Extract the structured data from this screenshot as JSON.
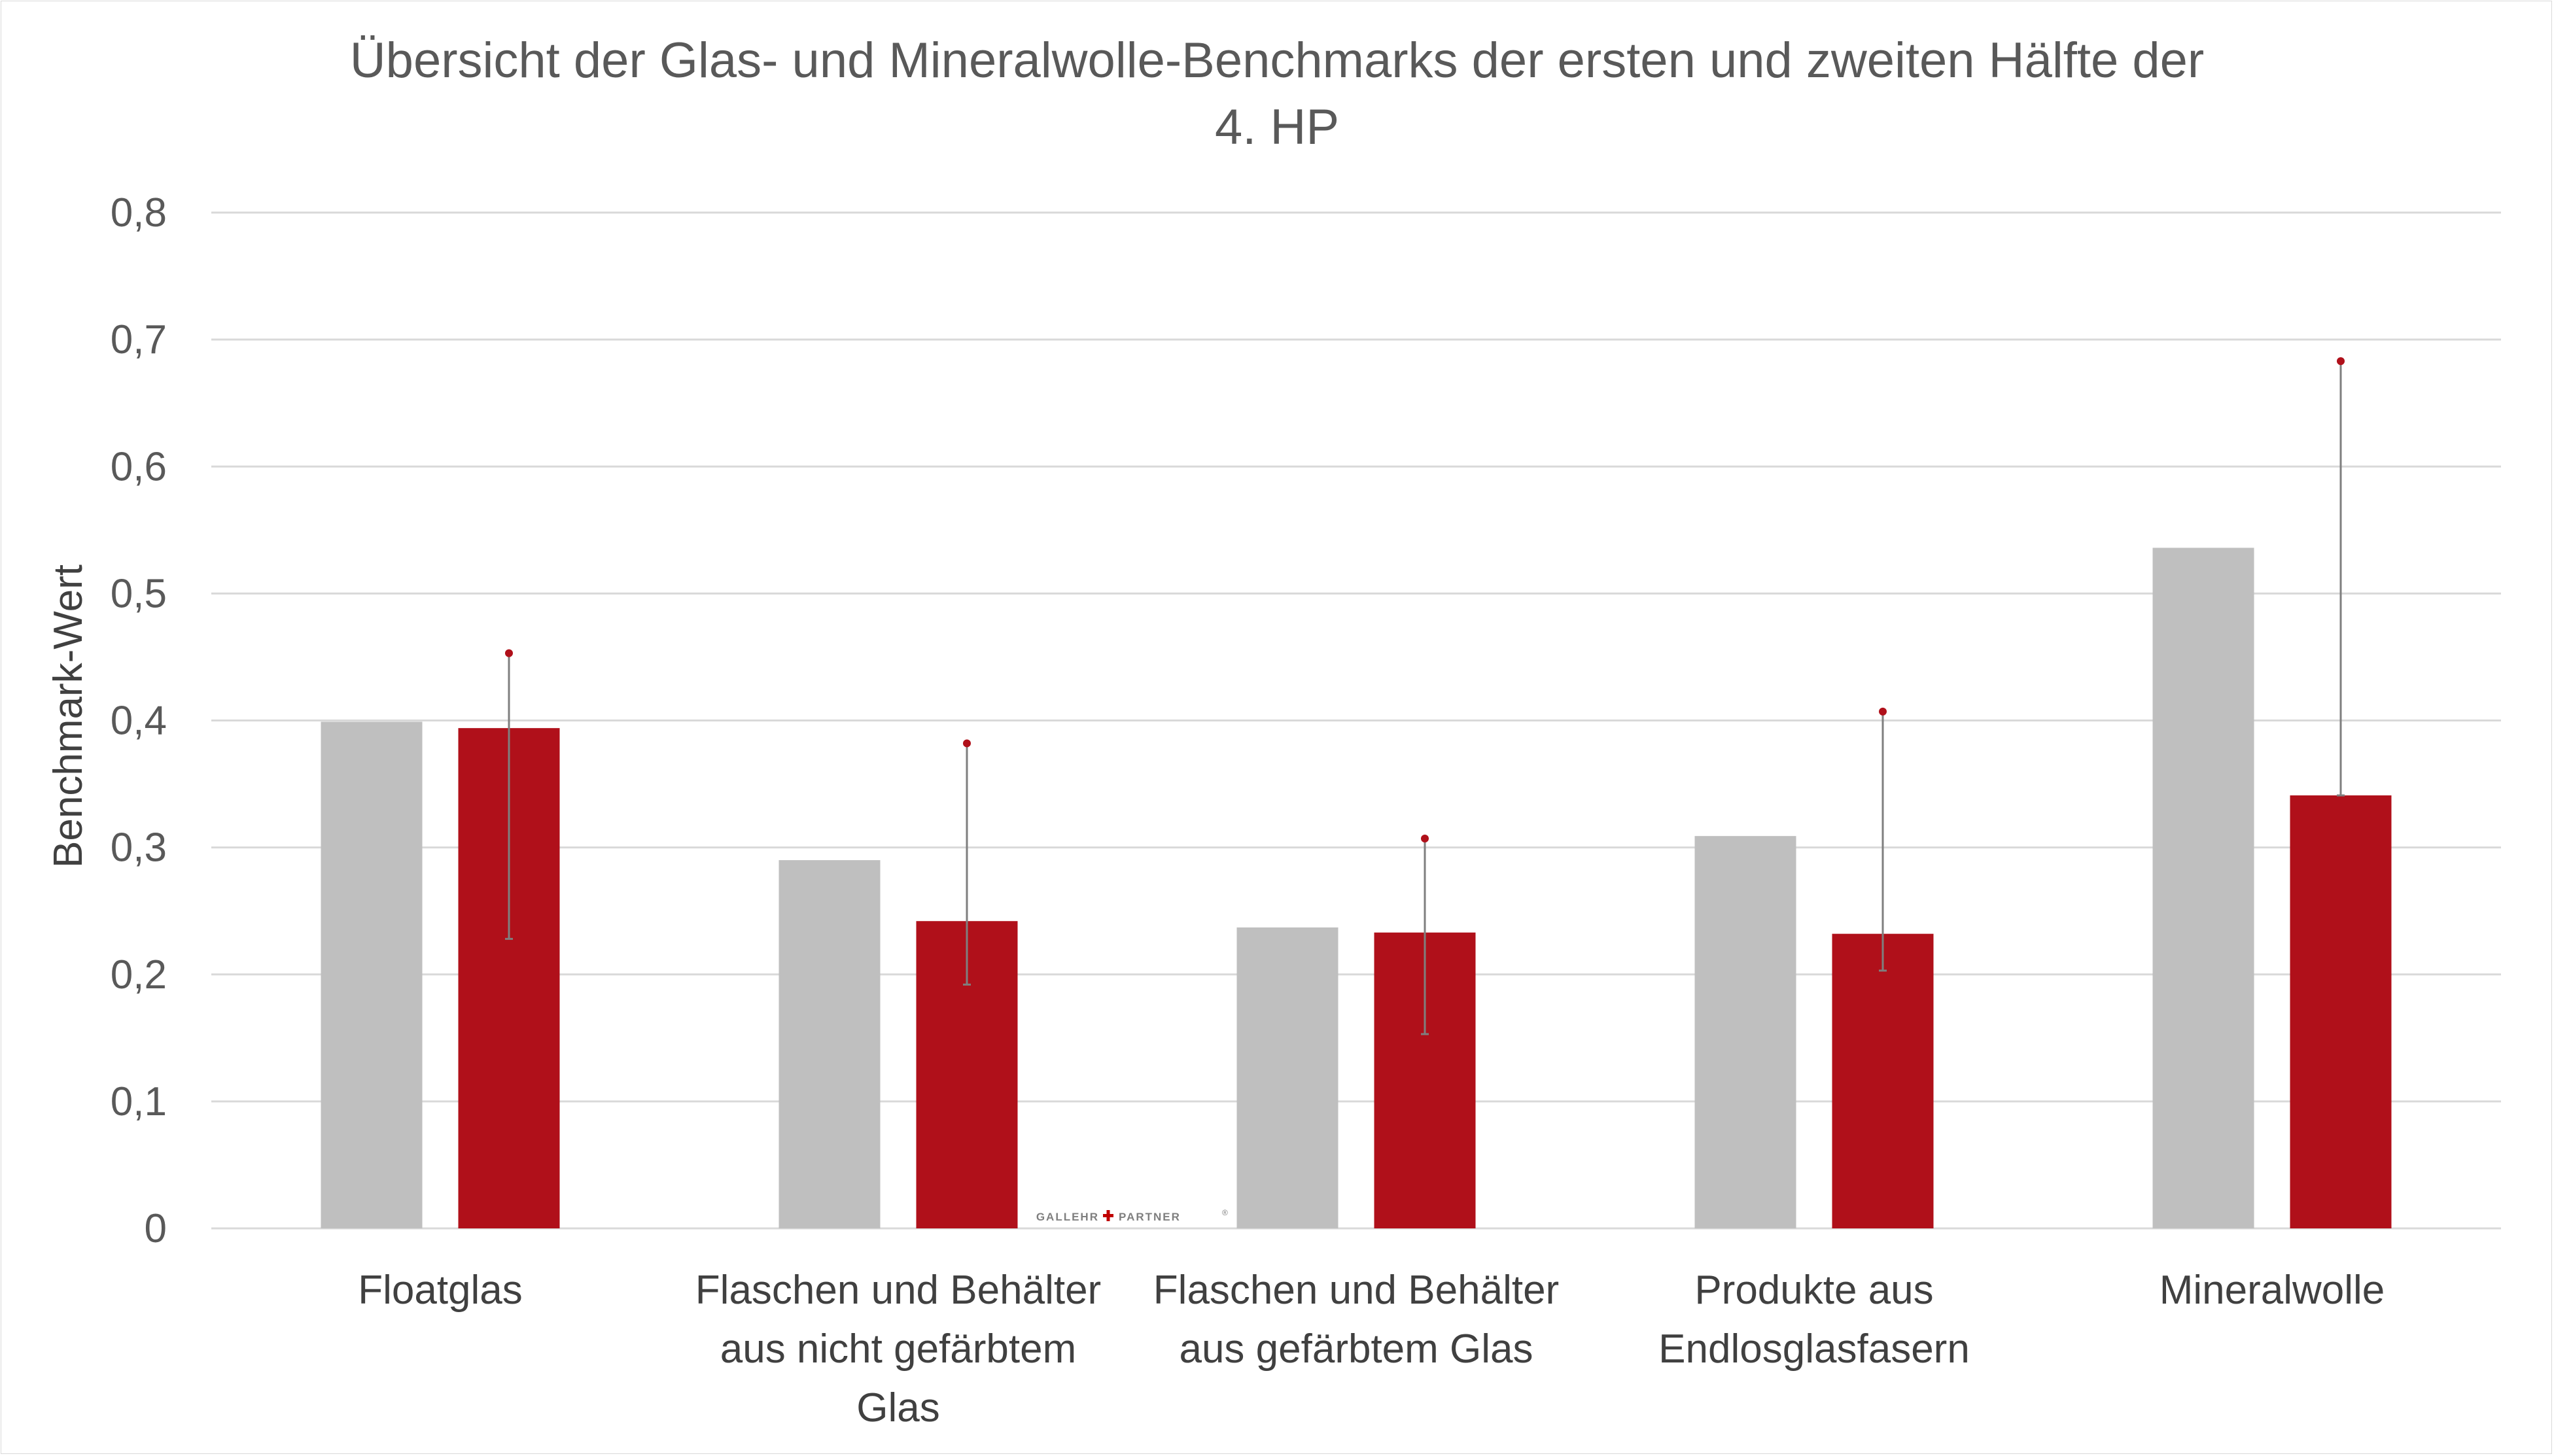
{
  "chart_data": {
    "type": "bar",
    "title_lines": [
      "Übersicht der Glas- und Mineralwolle-Benchmarks der ersten und zweiten Hälfte der",
      "4. HP"
    ],
    "ylabel": "Benchmark-Wert",
    "xlabel": "",
    "ylim": [
      0,
      0.8
    ],
    "yticks": [
      0,
      0.1,
      0.2,
      0.3,
      0.4,
      0.5,
      0.6,
      0.7,
      0.8
    ],
    "ytick_labels": [
      "0",
      "0,1",
      "0,2",
      "0,3",
      "0,4",
      "0,5",
      "0,6",
      "0,7",
      "0,8"
    ],
    "grid": true,
    "legend": "none",
    "categories": [
      [
        "Floatglas"
      ],
      [
        "Flaschen und Behälter",
        "aus nicht gefärbtem",
        "Glas"
      ],
      [
        "Flaschen und Behälter",
        "aus gefärbtem Glas"
      ],
      [
        "Produkte aus",
        "Endlosglasfasern"
      ],
      [
        "Mineralwolle"
      ]
    ],
    "series": [
      {
        "color": "#bfbfbf",
        "values": [
          0.399,
          0.29,
          0.237,
          0.309,
          0.536
        ]
      },
      {
        "color": "#b0101a",
        "values": [
          0.394,
          0.242,
          0.233,
          0.232,
          0.341
        ],
        "error_low": [
          0.228,
          0.192,
          0.153,
          0.203,
          0.341
        ],
        "error_high": [
          0.453,
          0.382,
          0.307,
          0.407,
          0.683
        ]
      }
    ],
    "error_bar_color": "#7f7f7f",
    "error_marker_color": "#b0101a"
  },
  "watermark": {
    "left": "GALLEHR",
    "right": "PARTNER",
    "mark": "®",
    "cross_color": "#c00000"
  }
}
